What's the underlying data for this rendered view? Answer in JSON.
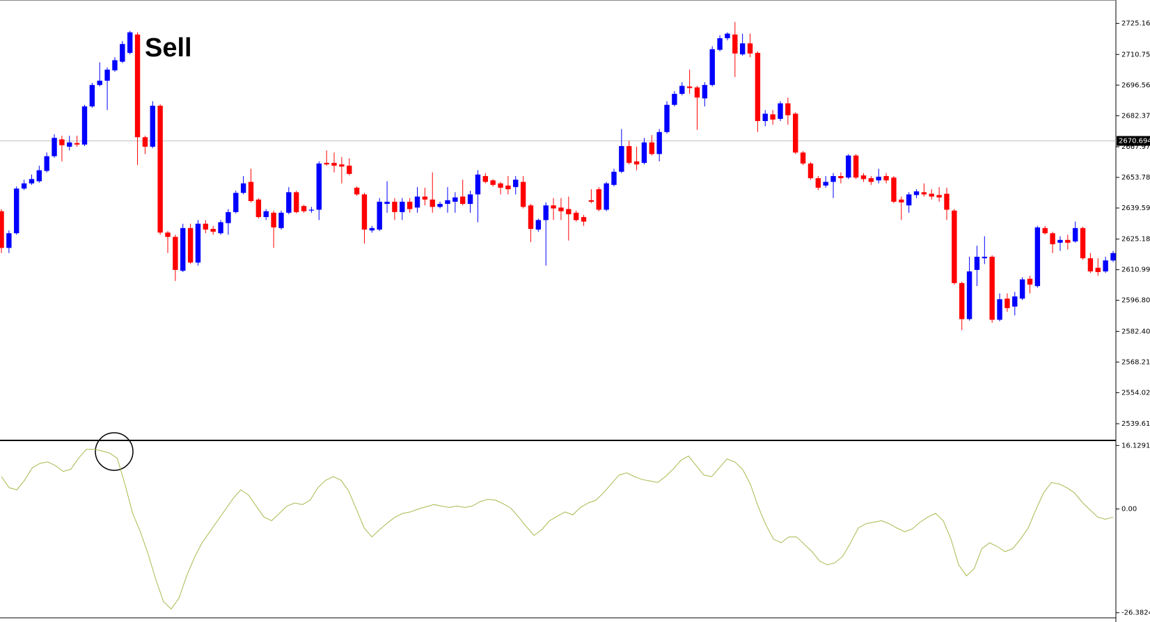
{
  "chart_data": [
    {
      "type": "candlestick",
      "annotation": "Sell",
      "up_color": "#0000ff",
      "down_color": "#ff0000",
      "current_price": 2670.694,
      "ylim": [
        2532.2,
        2736.0
      ],
      "yticks": [
        {
          "value": 2725.16,
          "label": "2725.160"
        },
        2710.755,
        2696.565,
        2682.375,
        {
          "value": 2667.97,
          "label": "2667.970"
        },
        {
          "value": 2653.78,
          "label": "2653.780"
        },
        {
          "value": 2639.59,
          "label": "2639.590"
        },
        2625.185,
        2610.995,
        2596.805,
        {
          "value": 2582.4,
          "label": "2582.400"
        },
        {
          "value": 2568.21,
          "label": "2568.210"
        },
        {
          "value": 2554.02,
          "label": "2554.020"
        },
        2539.615
      ],
      "open": [
        2638.1,
        2621.1,
        2627.9,
        2648.6,
        2651.0,
        2652.0,
        2656.8,
        2663.6,
        2671.4,
        2668.0,
        2669.7,
        2669.0,
        2686.7,
        2696.6,
        2698.6,
        2703.4,
        2707.4,
        2711.5,
        2720.0,
        2672.4,
        2668.0,
        2687.0,
        2628.2,
        2626.2,
        2610.5,
        2630.3,
        2614.3,
        2632.3,
        2629.9,
        2627.9,
        2632.6,
        2637.7,
        2646.6,
        2651.7,
        2643.5,
        2635.4,
        2637.4,
        2630.3,
        2637.4,
        2646.9,
        2640.5,
        2638.4,
        2638.8,
        2660.5,
        2660.5,
        2659.8,
        2659.2,
        2649.0,
        2645.9,
        2629.2,
        2629.6,
        2641.5,
        2642.5,
        2637.7,
        2642.5,
        2639.8,
        2644.9,
        2643.5,
        2640.1,
        2641.5,
        2642.5,
        2644.9,
        2641.5,
        2645.9,
        2654.4,
        2652.4,
        2651.0,
        2650.0,
        2649.3,
        2651.7,
        2640.8,
        2629.6,
        2634.0,
        2640.8,
        2639.8,
        2639.1,
        2637.4,
        2635.4,
        2643.2,
        2648.3,
        2638.8,
        2650.3,
        2656.4,
        2668.3,
        2661.2,
        2660.5,
        2670.0,
        2664.6,
        2674.8,
        2687.4,
        2692.5,
        2695.9,
        2695.5,
        2690.4,
        2696.6,
        2712.9,
        2718.3,
        2720.0,
        2710.8,
        2715.9,
        2711.5,
        2679.9,
        2683.0,
        2680.9,
        2688.1,
        2683.3,
        2665.3,
        2660.2,
        2653.4,
        2650.0,
        2651.7,
        2654.4,
        2653.7,
        2663.9,
        2654.7,
        2653.4,
        2652.4,
        2654.4,
        2653.7,
        2643.5,
        2640.8,
        2645.6,
        2646.9,
        2646.2,
        2645.6,
        2646.2,
        2638.4,
        2604.8,
        2588.1,
        2610.9,
        2616.3,
        2617.0,
        2587.8,
        2597.6,
        2593.9,
        2597.6,
        2606.8,
        2603.4,
        2630.3,
        2627.9,
        2623.5,
        2624.8,
        2624.1,
        2630.3,
        2616.3,
        2611.9,
        2610.2,
        2615.3
      ],
      "high": [
        2639.1,
        2629.2,
        2649.6,
        2652.7,
        2655.1,
        2659.2,
        2665.3,
        2673.8,
        2673.1,
        2673.1,
        2673.1,
        2687.4,
        2697.6,
        2707.1,
        2704.7,
        2709.5,
        2717.0,
        2721.7,
        2721.0,
        2673.1,
        2689.1,
        2687.7,
        2628.9,
        2627.2,
        2632.3,
        2632.3,
        2634.0,
        2634.0,
        2631.3,
        2634.0,
        2639.1,
        2647.6,
        2654.4,
        2657.8,
        2644.2,
        2639.1,
        2638.4,
        2638.4,
        2649.3,
        2647.6,
        2641.1,
        2640.1,
        2661.2,
        2666.3,
        2665.3,
        2663.2,
        2662.6,
        2649.6,
        2646.6,
        2631.3,
        2644.2,
        2652.0,
        2644.2,
        2644.2,
        2644.2,
        2649.3,
        2649.0,
        2656.1,
        2642.5,
        2649.3,
        2646.9,
        2652.7,
        2647.6,
        2657.1,
        2655.8,
        2653.0,
        2651.7,
        2654.4,
        2654.4,
        2654.4,
        2641.5,
        2634.7,
        2642.2,
        2644.2,
        2644.2,
        2644.9,
        2638.4,
        2636.4,
        2648.3,
        2649.3,
        2651.7,
        2657.8,
        2676.2,
        2670.7,
        2668.0,
        2672.1,
        2673.4,
        2676.2,
        2689.1,
        2693.8,
        2697.9,
        2703.7,
        2696.2,
        2697.9,
        2714.6,
        2719.7,
        2721.0,
        2725.8,
        2720.4,
        2720.4,
        2712.2,
        2685.0,
        2685.0,
        2689.1,
        2690.8,
        2684.0,
        2666.0,
        2660.9,
        2654.4,
        2654.4,
        2655.8,
        2656.1,
        2664.6,
        2664.6,
        2655.8,
        2654.4,
        2657.8,
        2655.8,
        2654.4,
        2644.9,
        2646.9,
        2648.3,
        2651.0,
        2648.3,
        2649.3,
        2649.0,
        2639.1,
        2605.4,
        2617.0,
        2622.1,
        2626.5,
        2617.7,
        2600.0,
        2600.0,
        2600.7,
        2607.5,
        2608.2,
        2631.3,
        2631.3,
        2628.6,
        2626.5,
        2627.2,
        2633.3,
        2630.9,
        2618.7,
        2616.3,
        2617.0,
        2619.7
      ],
      "low": [
        2618.7,
        2618.7,
        2627.2,
        2647.9,
        2650.3,
        2651.3,
        2656.1,
        2662.9,
        2661.2,
        2666.3,
        2668.0,
        2668.3,
        2686.0,
        2695.9,
        2685.0,
        2702.7,
        2706.8,
        2710.8,
        2659.5,
        2664.6,
        2667.3,
        2627.2,
        2618.7,
        2605.8,
        2609.9,
        2613.6,
        2612.9,
        2627.9,
        2627.2,
        2627.2,
        2627.2,
        2637.1,
        2645.9,
        2642.2,
        2634.7,
        2634.0,
        2621.1,
        2629.6,
        2636.7,
        2637.1,
        2637.4,
        2637.4,
        2634.0,
        2659.2,
        2656.1,
        2651.0,
        2654.7,
        2645.2,
        2623.1,
        2628.2,
        2628.9,
        2637.4,
        2634.0,
        2634.0,
        2637.4,
        2637.4,
        2640.8,
        2637.4,
        2639.4,
        2637.4,
        2637.4,
        2640.8,
        2637.4,
        2633.0,
        2651.0,
        2649.6,
        2645.9,
        2645.9,
        2645.9,
        2639.4,
        2623.8,
        2628.6,
        2612.9,
        2634.0,
        2634.0,
        2624.5,
        2633.3,
        2631.3,
        2641.8,
        2638.1,
        2638.1,
        2649.6,
        2655.8,
        2659.8,
        2657.1,
        2659.8,
        2663.9,
        2661.2,
        2674.1,
        2686.7,
        2691.8,
        2692.5,
        2675.8,
        2686.7,
        2695.9,
        2712.2,
        2717.3,
        2700.3,
        2710.2,
        2709.5,
        2674.8,
        2677.5,
        2678.2,
        2679.9,
        2678.2,
        2664.6,
        2659.5,
        2652.7,
        2647.9,
        2649.0,
        2644.2,
        2651.0,
        2653.0,
        2653.0,
        2651.7,
        2650.3,
        2651.0,
        2651.0,
        2641.8,
        2634.0,
        2637.4,
        2644.2,
        2644.9,
        2643.5,
        2642.5,
        2634.0,
        2604.1,
        2583.0,
        2587.4,
        2603.4,
        2613.6,
        2586.4,
        2587.1,
        2591.5,
        2589.8,
        2596.9,
        2600.0,
        2602.7,
        2627.2,
        2618.7,
        2619.7,
        2620.4,
        2623.5,
        2615.6,
        2609.5,
        2608.2,
        2609.5,
        2614.6
      ],
      "close": [
        2621.1,
        2627.9,
        2648.6,
        2651.0,
        2653.0,
        2657.1,
        2663.6,
        2672.1,
        2668.7,
        2670.0,
        2669.0,
        2686.7,
        2696.6,
        2698.6,
        2703.7,
        2708.1,
        2715.6,
        2721.0,
        2672.4,
        2668.0,
        2687.0,
        2628.2,
        2626.2,
        2610.9,
        2630.3,
        2614.3,
        2632.3,
        2629.6,
        2628.6,
        2633.0,
        2637.7,
        2646.6,
        2651.0,
        2642.8,
        2635.4,
        2638.1,
        2630.6,
        2637.4,
        2646.9,
        2637.7,
        2638.1,
        2638.8,
        2660.2,
        2659.8,
        2659.2,
        2658.8,
        2655.4,
        2645.9,
        2629.6,
        2630.3,
        2642.5,
        2642.5,
        2637.7,
        2642.5,
        2639.1,
        2644.9,
        2643.5,
        2640.1,
        2641.5,
        2643.2,
        2644.5,
        2641.5,
        2645.9,
        2655.1,
        2651.7,
        2650.3,
        2649.0,
        2648.3,
        2652.7,
        2640.1,
        2629.9,
        2634.0,
        2640.8,
        2639.4,
        2638.1,
        2636.7,
        2634.0,
        2633.3,
        2642.5,
        2638.8,
        2651.0,
        2656.4,
        2668.3,
        2660.5,
        2659.8,
        2670.0,
        2664.6,
        2674.8,
        2687.4,
        2692.5,
        2696.2,
        2695.2,
        2690.8,
        2696.6,
        2713.2,
        2718.3,
        2720.4,
        2711.2,
        2715.9,
        2711.2,
        2679.9,
        2683.3,
        2680.6,
        2688.1,
        2682.6,
        2665.3,
        2660.2,
        2653.4,
        2649.0,
        2651.7,
        2654.4,
        2653.4,
        2663.9,
        2653.7,
        2653.0,
        2651.7,
        2654.1,
        2652.4,
        2642.5,
        2642.2,
        2645.9,
        2647.3,
        2645.9,
        2644.9,
        2644.5,
        2638.8,
        2604.8,
        2588.1,
        2610.2,
        2617.0,
        2617.0,
        2587.8,
        2597.3,
        2593.2,
        2598.6,
        2606.5,
        2604.1,
        2630.6,
        2627.9,
        2622.8,
        2624.8,
        2623.5,
        2630.3,
        2616.3,
        2610.2,
        2609.9,
        2615.3,
        2618.7
      ]
    },
    {
      "type": "line",
      "color": "#a8b84c",
      "ylim": [
        -27.5,
        17.25
      ],
      "yticks": [
        16.1291,
        {
          "value": 0,
          "label": "0.00"
        },
        -26.3824
      ],
      "values": [
        8.23,
        5.42,
        4.86,
        7.29,
        10.47,
        11.59,
        11.97,
        11.03,
        9.54,
        10.1,
        12.9,
        15.15,
        15.15,
        14.77,
        14.21,
        12.9,
        6.36,
        -1.12,
        -5.8,
        -11.41,
        -17.95,
        -23.56,
        -25.43,
        -22.63,
        -17.02,
        -12.34,
        -8.6,
        -5.8,
        -2.99,
        -0.19,
        2.62,
        4.86,
        3.55,
        0.75,
        -2.06,
        -2.99,
        -1.12,
        0.75,
        1.5,
        1.12,
        2.24,
        5.42,
        7.29,
        8.23,
        7.29,
        4.49,
        -0.19,
        -4.86,
        -7.11,
        -5.24,
        -3.55,
        -2.06,
        -1.12,
        -0.75,
        0,
        0.56,
        1.12,
        0.75,
        0.37,
        0.75,
        0.37,
        0.75,
        1.87,
        2.43,
        2.24,
        1.31,
        0.19,
        -2.06,
        -4.49,
        -6.73,
        -5.24,
        -2.99,
        -1.87,
        -0.75,
        -1.5,
        0.37,
        1.5,
        2.24,
        4.11,
        6.36,
        8.6,
        9.16,
        8.23,
        7.48,
        7.11,
        6.73,
        8.23,
        10.1,
        12.34,
        13.46,
        11.03,
        8.6,
        8.23,
        10.47,
        12.72,
        11.97,
        10.1,
        6.36,
        0.75,
        -3.93,
        -7.67,
        -8.6,
        -7.11,
        -7.11,
        -8.98,
        -10.85,
        -13.28,
        -14.21,
        -13.65,
        -11.97,
        -8.6,
        -4.86,
        -3.74,
        -3.37,
        -2.99,
        -3.74,
        -4.86,
        -5.8,
        -5.05,
        -3.37,
        -2.06,
        -1.12,
        -2.99,
        -7.67,
        -14.21,
        -17.02,
        -15.15,
        -10.1,
        -8.6,
        -9.54,
        -10.85,
        -10.1,
        -7.67,
        -4.86,
        -0.19,
        4.11,
        6.73,
        6.36,
        5.42,
        4.11,
        1.68,
        -0.19,
        -2.06,
        -2.62,
        -2.06
      ]
    }
  ]
}
